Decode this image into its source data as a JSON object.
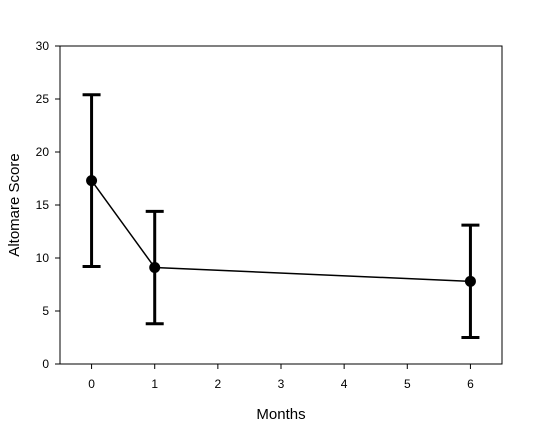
{
  "chart_data": {
    "type": "line",
    "title": "",
    "xlabel": "Months",
    "ylabel": "Altomare Score",
    "xlim": [
      -0.5,
      6.5
    ],
    "ylim": [
      0,
      30
    ],
    "x_ticks": [
      "0",
      "1",
      "2",
      "3",
      "4",
      "5",
      "6"
    ],
    "y_ticks": [
      "0",
      "5",
      "10",
      "15",
      "20",
      "25",
      "30"
    ],
    "grid": false,
    "legend": "none",
    "series": [
      {
        "x": [
          0,
          1,
          6
        ],
        "y": [
          17.3,
          9.1,
          7.8
        ],
        "error_low": [
          9.2,
          3.8,
          2.5
        ],
        "error_high": [
          25.4,
          14.4,
          13.1
        ]
      }
    ]
  }
}
